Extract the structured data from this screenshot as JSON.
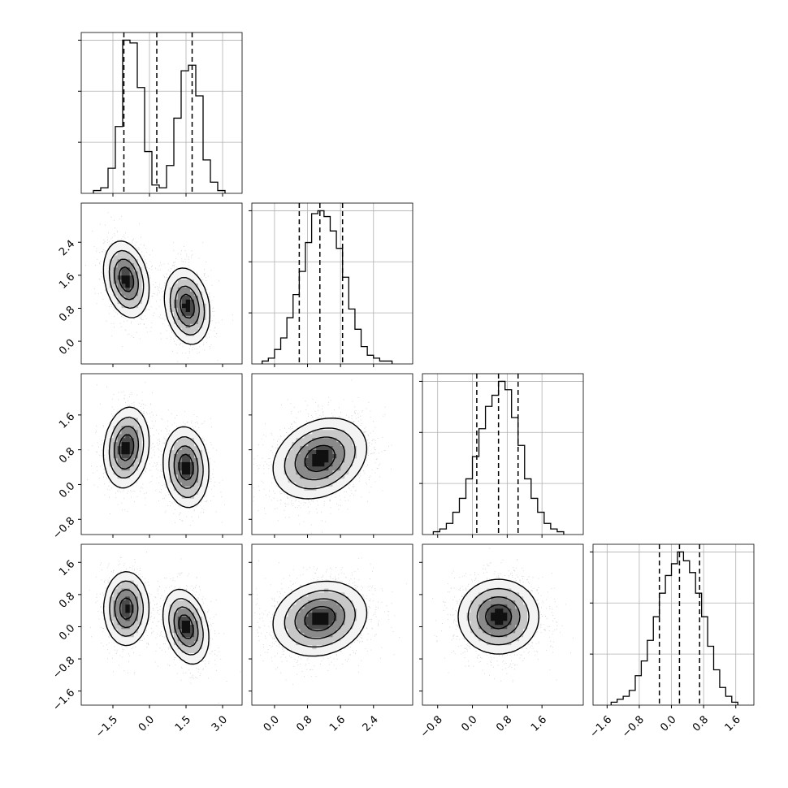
{
  "chart_data": {
    "type": "corner",
    "title": "",
    "params": [
      {
        "range": [
          -2.8,
          3.8
        ],
        "ticks": [
          -1.5,
          0.0,
          1.5,
          3.0
        ],
        "tick_labels": [
          "−1.5",
          "0.0",
          "1.5",
          "3.0"
        ],
        "quantiles": [
          -1.05,
          0.3,
          1.75
        ],
        "hist": {
          "bins": [
            -2.3,
            -2.0,
            -1.7,
            -1.4,
            -1.1,
            -0.8,
            -0.5,
            -0.2,
            0.1,
            0.4,
            0.7,
            1.0,
            1.3,
            1.6,
            1.9,
            2.2,
            2.5,
            2.8,
            3.1
          ],
          "counts": [
            1,
            2,
            9,
            24,
            55,
            54,
            38,
            15,
            3,
            2,
            10,
            27,
            44,
            46,
            35,
            12,
            4,
            1
          ]
        }
      },
      {
        "range": [
          -0.55,
          3.35
        ],
        "ticks": [
          0.0,
          0.8,
          1.6,
          2.4
        ],
        "tick_labels": [
          "0.0",
          "0.8",
          "1.6",
          "2.4"
        ],
        "quantiles": [
          0.6,
          1.1,
          1.65
        ],
        "hist": {
          "bins": [
            -0.3,
            -0.15,
            0.0,
            0.15,
            0.3,
            0.45,
            0.6,
            0.75,
            0.9,
            1.05,
            1.2,
            1.35,
            1.5,
            1.65,
            1.8,
            1.95,
            2.1,
            2.25,
            2.4,
            2.55,
            2.7,
            2.85
          ],
          "counts": [
            1,
            2,
            5,
            9,
            16,
            24,
            32,
            42,
            52,
            53,
            51,
            46,
            40,
            30,
            19,
            12,
            6,
            3,
            2,
            1,
            1
          ]
        }
      },
      {
        "range": [
          -1.15,
          2.55
        ],
        "ticks": [
          -0.8,
          0.0,
          0.8,
          1.6
        ],
        "tick_labels": [
          "−0.8",
          "0.0",
          "0.8",
          "1.6"
        ],
        "quantiles": [
          0.1,
          0.6,
          1.05
        ],
        "hist": {
          "bins": [
            -0.9,
            -0.75,
            -0.6,
            -0.45,
            -0.3,
            -0.15,
            0.0,
            0.15,
            0.3,
            0.45,
            0.6,
            0.75,
            0.9,
            1.05,
            1.2,
            1.35,
            1.5,
            1.65,
            1.8,
            1.95,
            2.1
          ],
          "counts": [
            1,
            2,
            4,
            8,
            13,
            20,
            28,
            38,
            46,
            50,
            55,
            52,
            42,
            32,
            20,
            13,
            8,
            4,
            2,
            1
          ]
        }
      },
      {
        "range": [
          -1.95,
          2.05
        ],
        "ticks": [
          -1.6,
          -0.8,
          0.0,
          0.8,
          1.6
        ],
        "tick_labels": [
          "−1.6",
          "−0.8",
          "0.0",
          "0.8",
          "1.6"
        ],
        "quantiles": [
          -0.3,
          0.2,
          0.7
        ],
        "hist": {
          "bins": [
            -1.5,
            -1.35,
            -1.2,
            -1.05,
            -0.9,
            -0.75,
            -0.6,
            -0.45,
            -0.3,
            -0.15,
            0.0,
            0.15,
            0.3,
            0.45,
            0.6,
            0.75,
            0.9,
            1.05,
            1.2,
            1.35,
            1.5,
            1.65
          ],
          "counts": [
            1,
            2,
            3,
            5,
            10,
            15,
            22,
            30,
            38,
            44,
            48,
            52,
            49,
            45,
            38,
            30,
            20,
            12,
            6,
            3,
            1
          ]
        }
      }
    ],
    "pairs": [
      {
        "row": 1,
        "col": 0,
        "modes": [
          {
            "weight": 0.5,
            "mean": [
              -0.95,
              1.5
            ],
            "sd": [
              0.45,
              0.45
            ],
            "rho": -0.25
          },
          {
            "weight": 0.5,
            "mean": [
              1.55,
              0.85
            ],
            "sd": [
              0.45,
              0.45
            ],
            "rho": -0.2
          }
        ]
      },
      {
        "row": 2,
        "col": 0,
        "modes": [
          {
            "weight": 0.5,
            "mean": [
              -0.95,
              0.85
            ],
            "sd": [
              0.45,
              0.45
            ],
            "rho": 0.15
          },
          {
            "weight": 0.5,
            "mean": [
              1.5,
              0.4
            ],
            "sd": [
              0.45,
              0.45
            ],
            "rho": -0.1
          }
        ]
      },
      {
        "row": 3,
        "col": 0,
        "modes": [
          {
            "weight": 0.5,
            "mean": [
              -0.95,
              0.45
            ],
            "sd": [
              0.45,
              0.45
            ],
            "rho": 0.0
          },
          {
            "weight": 0.5,
            "mean": [
              1.5,
              0.0
            ],
            "sd": [
              0.45,
              0.45
            ],
            "rho": -0.3
          }
        ]
      },
      {
        "row": 2,
        "col": 1,
        "modes": [
          {
            "weight": 1.0,
            "mean": [
              1.1,
              0.6
            ],
            "sd": [
              0.55,
              0.45
            ],
            "rho": 0.25
          }
        ]
      },
      {
        "row": 3,
        "col": 1,
        "modes": [
          {
            "weight": 1.0,
            "mean": [
              1.1,
              0.2
            ],
            "sd": [
              0.55,
              0.45
            ],
            "rho": 0.15
          }
        ]
      },
      {
        "row": 3,
        "col": 2,
        "modes": [
          {
            "weight": 1.0,
            "mean": [
              0.6,
              0.25
            ],
            "sd": [
              0.45,
              0.45
            ],
            "rho": 0.0
          }
        ]
      }
    ],
    "grid": true
  }
}
